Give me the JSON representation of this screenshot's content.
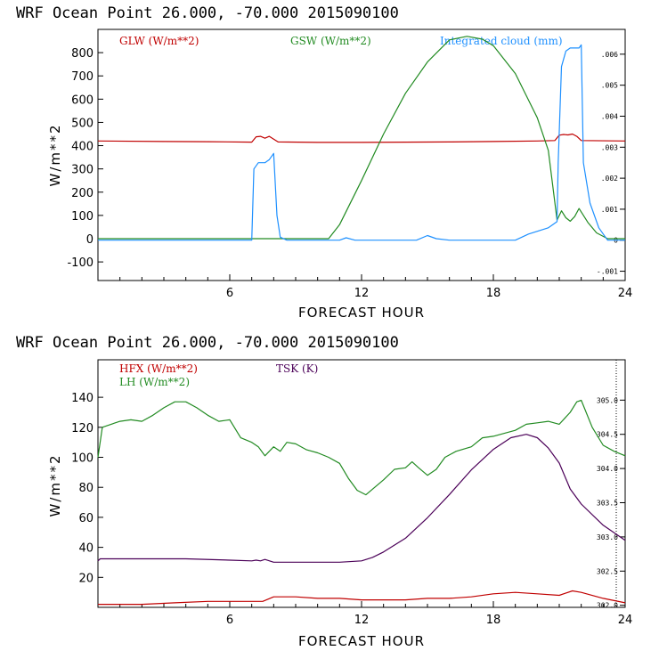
{
  "colors": {
    "red": "#c00000",
    "green": "#228b22",
    "blue": "#1e90ff",
    "purple": "#4b0058",
    "black": "#000000"
  },
  "chart_data": [
    {
      "type": "line",
      "title": "WRF   Ocean Point   26.000, -70.000  2015090100",
      "xlabel": "FORECAST HOUR",
      "ylabel": "W/m**2",
      "xlim": [
        0,
        24
      ],
      "ylim": [
        -180,
        900
      ],
      "y2lim": [
        -0.0013,
        0.0068
      ],
      "x_ticks": [
        "6",
        "12",
        "18",
        "24"
      ],
      "y_ticks": [
        "800",
        "700",
        "600",
        "500",
        "400",
        "300",
        "200",
        "100",
        "0",
        "-100"
      ],
      "y2_ticks": [
        ".006",
        ".005",
        ".004",
        ".003",
        ".002",
        ".001",
        "0",
        "-.001"
      ],
      "series": [
        {
          "name": "GLW (W/m**2)",
          "axis": "left",
          "color": "red",
          "x": [
            0,
            3,
            5,
            7,
            7.2,
            7.4,
            7.6,
            7.8,
            8,
            8.2,
            10,
            12,
            14,
            16,
            18,
            20,
            20.8,
            21.0,
            21.2,
            21.4,
            21.6,
            21.8,
            22,
            24
          ],
          "y": [
            420,
            418,
            417,
            415,
            438,
            440,
            432,
            440,
            428,
            416,
            414,
            414,
            415,
            416,
            418,
            420,
            422,
            445,
            448,
            446,
            450,
            440,
            422,
            420
          ]
        },
        {
          "name": "GSW (W/m**2)",
          "axis": "left",
          "color": "green",
          "x": [
            0,
            10.5,
            11,
            12,
            13,
            14,
            15,
            16,
            16.8,
            17.5,
            18,
            19,
            20,
            20.5,
            20.9,
            21.1,
            21.3,
            21.5,
            21.7,
            21.9,
            22.3,
            22.7,
            23.2,
            24
          ],
          "y": [
            0,
            0,
            60,
            250,
            450,
            625,
            760,
            855,
            870,
            858,
            830,
            710,
            520,
            380,
            80,
            120,
            90,
            75,
            95,
            130,
            70,
            25,
            0,
            0
          ]
        },
        {
          "name": "Integrated cloud (mm)",
          "axis": "right",
          "color": "blue",
          "x": [
            0,
            7.0,
            7.1,
            7.3,
            7.6,
            7.8,
            8.0,
            8.15,
            8.3,
            8.6,
            9.0,
            10.0,
            11.0,
            11.3,
            11.7,
            12.5,
            14.5,
            15.0,
            15.4,
            16,
            19,
            19.6,
            20.5,
            20.9,
            20.95,
            21.1,
            21.3,
            21.5,
            21.9,
            22.0,
            22.1,
            22.4,
            22.8,
            23.2,
            24
          ],
          "y": [
            0,
            0,
            0.0023,
            0.0025,
            0.0025,
            0.0026,
            0.0028,
            0.0008,
            0.0001,
            0,
            0,
            0,
            0,
            8e-05,
            0,
            0,
            0,
            0.00015,
            5e-05,
            0,
            0,
            0.0002,
            0.0004,
            0.0006,
            0.0025,
            0.0056,
            0.0061,
            0.0062,
            0.0062,
            0.0063,
            0.0025,
            0.0012,
            0.0004,
            0,
            0
          ]
        }
      ]
    },
    {
      "type": "line",
      "title": "WRF   Ocean Point   26.000, -70.000  2015090100",
      "xlabel": "FORECAST HOUR",
      "ylabel": "W/m**2",
      "xlim": [
        0,
        24
      ],
      "ylim": [
        0,
        165
      ],
      "y2lim": [
        301.97,
        305.59
      ],
      "x_ticks": [
        "6",
        "12",
        "18",
        "24"
      ],
      "y_ticks": [
        "140",
        "120",
        "100",
        "80",
        "60",
        "40",
        "20"
      ],
      "y2_ticks": [
        "305.0",
        "304.5",
        "304.0",
        "303.5",
        "303.0",
        "302.5",
        "302.0"
      ],
      "series": [
        {
          "name": "HFX (W/m**2)",
          "axis": "left",
          "color": "red",
          "x": [
            0,
            2,
            3.5,
            5,
            6.5,
            7.5,
            8,
            9,
            10,
            11,
            12,
            13,
            14,
            15,
            16,
            17,
            18,
            19,
            20,
            21,
            21.6,
            22,
            23,
            24
          ],
          "y": [
            2,
            2,
            3,
            4,
            4,
            4,
            7,
            7,
            6,
            6,
            5,
            5,
            5,
            6,
            6,
            7,
            9,
            10,
            9,
            8,
            11,
            10,
            6,
            3
          ]
        },
        {
          "name": "LH (W/m**2)",
          "axis": "left",
          "color": "green",
          "x": [
            0,
            0.2,
            0.6,
            1,
            1.5,
            2,
            2.5,
            3,
            3.5,
            4,
            4.5,
            5,
            5.5,
            6,
            6.5,
            7,
            7.3,
            7.6,
            8,
            8.3,
            8.6,
            9,
            9.5,
            10,
            10.5,
            11,
            11.4,
            11.8,
            12.2,
            12.6,
            13,
            13.5,
            14,
            14.3,
            14.6,
            15,
            15.4,
            15.8,
            16.3,
            17,
            17.5,
            18,
            18.5,
            19,
            19.5,
            20,
            20.5,
            21,
            21.5,
            21.8,
            22,
            22.5,
            23,
            23.5,
            24
          ],
          "y": [
            100,
            120,
            122,
            124,
            125,
            124,
            128,
            133,
            137,
            137,
            133,
            128,
            124,
            125,
            113,
            110,
            107,
            101,
            107,
            104,
            110,
            109,
            105,
            103,
            100,
            96,
            86,
            78,
            75,
            80,
            85,
            92,
            93,
            97,
            93,
            88,
            92,
            100,
            104,
            107,
            113,
            114,
            116,
            118,
            122,
            123,
            124,
            122,
            130,
            137,
            138,
            120,
            108,
            104,
            101
          ]
        },
        {
          "name": "TSK (K)",
          "axis": "right",
          "color": "purple",
          "x": [
            0,
            0.1,
            2,
            4,
            6,
            7,
            7.2,
            7.4,
            7.6,
            8,
            9,
            10,
            11,
            12,
            12.5,
            13,
            14,
            15,
            16,
            17,
            18,
            18.8,
            19.5,
            20,
            20.5,
            21,
            21.5,
            22,
            23,
            24
          ],
          "y": [
            302.65,
            302.68,
            302.68,
            302.68,
            302.66,
            302.65,
            302.66,
            302.65,
            302.67,
            302.63,
            302.63,
            302.63,
            302.63,
            302.65,
            302.7,
            302.78,
            302.98,
            303.28,
            303.62,
            303.98,
            304.28,
            304.45,
            304.5,
            304.45,
            304.3,
            304.08,
            303.7,
            303.48,
            303.17,
            302.95
          ]
        }
      ]
    }
  ]
}
